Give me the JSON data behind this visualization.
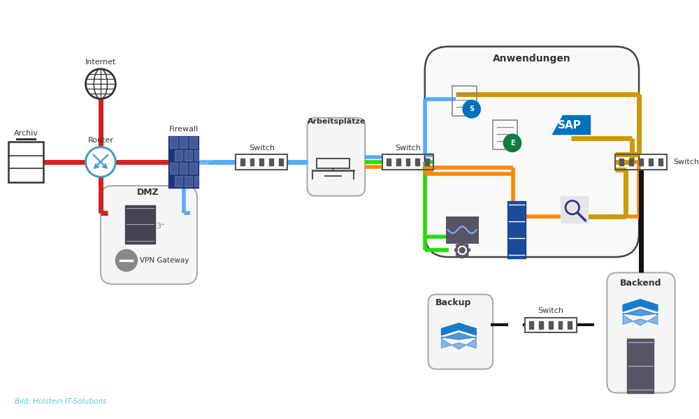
{
  "bg_color": "#ffffff",
  "caption": "Bild: Holstein IT-Solutions",
  "caption_color": "#5bc8d0",
  "colors": {
    "red": "#d42020",
    "blue": "#55aaff",
    "green": "#22dd00",
    "orange": "#ff8800",
    "gold": "#cc9900",
    "black": "#111111",
    "dark": "#333333",
    "gray": "#888888",
    "light_gray": "#f0f0f0",
    "firewall_blue": "#1a3580",
    "router_blue": "#4499cc",
    "vpn_gray": "#888888"
  },
  "labels": {
    "internet": "Internet",
    "router": "Router",
    "archiv": "Archiv",
    "firewall": "Firewall",
    "switch": "Switch",
    "arbeitsplaetze": "Arbeitsplätze",
    "dmz": "DMZ",
    "vpn": "VPN Gateway",
    "anwendungen": "Anwendungen",
    "sap": "SAP",
    "backup": "Backup",
    "backend": "Backend"
  }
}
